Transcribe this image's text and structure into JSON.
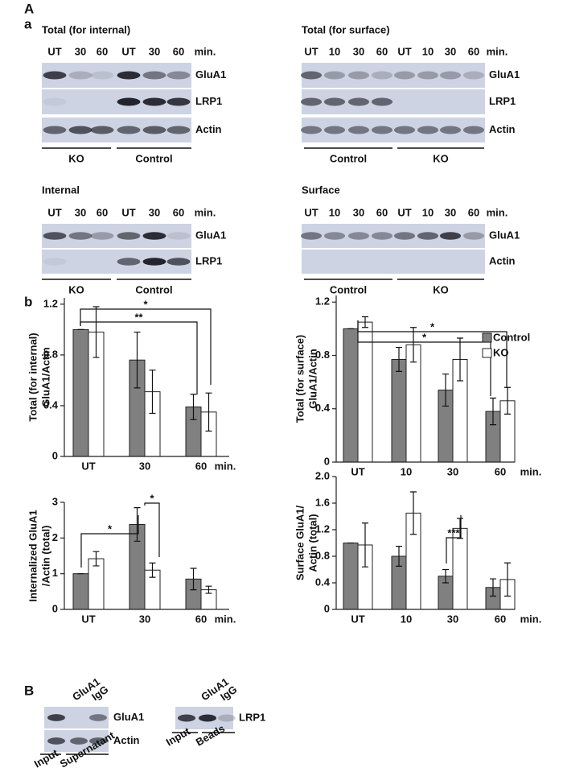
{
  "panel_labels": [
    "A",
    "a",
    "b",
    "B"
  ],
  "blots": [
    {
      "title": "Total (for internal)",
      "lanes": [
        "UT",
        "30",
        "60",
        "UT",
        "30",
        "60"
      ],
      "unit": "min.",
      "rows": [
        "GluA1",
        "LRP1",
        "Actin"
      ],
      "groups": [
        "KO",
        "Control"
      ]
    },
    {
      "title": "Total (for surface)",
      "lanes": [
        "UT",
        "10",
        "30",
        "60",
        "UT",
        "10",
        "30",
        "60"
      ],
      "unit": "min.",
      "rows": [
        "GluA1",
        "LRP1",
        "Actin"
      ],
      "groups": [
        "Control",
        "KO"
      ]
    },
    {
      "title": "Internal",
      "lanes": [
        "UT",
        "30",
        "60",
        "UT",
        "30",
        "60"
      ],
      "unit": "min.",
      "rows": [
        "GluA1",
        "LRP1"
      ],
      "groups": [
        "KO",
        "Control"
      ]
    },
    {
      "title": "Surface",
      "lanes": [
        "UT",
        "10",
        "30",
        "60",
        "UT",
        "10",
        "30",
        "60"
      ],
      "unit": "min.",
      "rows": [
        "GluA1",
        "Actin"
      ],
      "groups": [
        "Control",
        "KO"
      ]
    }
  ],
  "chart_data": [
    {
      "type": "bar",
      "y_label": [
        "Total (for internal)",
        "GluA1/Actin"
      ],
      "categories": [
        "UT",
        "30",
        "60"
      ],
      "x_unit": "min.",
      "series": [
        {
          "color": "#808080",
          "values": [
            1.0,
            0.76,
            0.39
          ],
          "errors": [
            0,
            0.22,
            0.1
          ]
        },
        {
          "color": "#ffffff",
          "values": [
            0.98,
            0.51,
            0.35
          ],
          "errors": [
            0.2,
            0.17,
            0.15
          ]
        }
      ],
      "ylim": [
        0,
        1.25
      ],
      "yticks": [
        0,
        0.4,
        0.8,
        1.2
      ],
      "annotations": [
        "*",
        "**"
      ]
    },
    {
      "type": "bar",
      "y_label": [
        "Total (for surface)",
        "GluA1/Actin"
      ],
      "categories": [
        "UT",
        "10",
        "30",
        "60"
      ],
      "x_unit": "min.",
      "series": [
        {
          "name": "Control",
          "color": "#808080",
          "values": [
            1.0,
            0.77,
            0.54,
            0.38
          ],
          "errors": [
            0,
            0.09,
            0.12,
            0.1
          ]
        },
        {
          "name": "KO",
          "color": "#ffffff",
          "values": [
            1.05,
            0.88,
            0.77,
            0.46
          ],
          "errors": [
            0.04,
            0.13,
            0.16,
            0.1
          ]
        }
      ],
      "ylim": [
        0,
        1.25
      ],
      "yticks": [
        0,
        0.4,
        0.8,
        1.2
      ],
      "annotations": [
        "*",
        "*"
      ],
      "legend": "right"
    },
    {
      "type": "bar",
      "y_label": [
        "Internalized GluA1",
        "/Actin (total)"
      ],
      "categories": [
        "UT",
        "30",
        "60"
      ],
      "x_unit": "min.",
      "series": [
        {
          "color": "#808080",
          "values": [
            1.0,
            2.38,
            0.85
          ],
          "errors": [
            0,
            0.47,
            0.3
          ]
        },
        {
          "color": "#ffffff",
          "values": [
            1.42,
            1.1,
            0.55
          ],
          "errors": [
            0.2,
            0.2,
            0.1
          ]
        }
      ],
      "ylim": [
        0,
        3
      ],
      "yticks": [
        0,
        1,
        2,
        3
      ],
      "annotations": [
        "*",
        "*"
      ]
    },
    {
      "type": "bar",
      "y_label": [
        "Surface GluA1/",
        "Actin (total)"
      ],
      "categories": [
        "UT",
        "10",
        "30",
        "60"
      ],
      "x_unit": "min.",
      "series": [
        {
          "color": "#808080",
          "values": [
            1.0,
            0.8,
            0.5,
            0.33
          ],
          "errors": [
            0,
            0.15,
            0.1,
            0.13
          ]
        },
        {
          "color": "#ffffff",
          "values": [
            0.97,
            1.45,
            1.22,
            0.45
          ],
          "errors": [
            0.33,
            0.32,
            0.15,
            0.25
          ]
        }
      ],
      "ylim": [
        0,
        2
      ],
      "yticks": [
        0,
        0.4,
        0.8,
        1.2,
        1.6,
        {
          "value": 2,
          "label": "2.0"
        }
      ],
      "annotations": [
        "***"
      ]
    }
  ],
  "pulldowns": [
    {
      "lanes": [
        "GluA1",
        "IgG"
      ],
      "rows": [
        "GluA1",
        "Actin"
      ],
      "groups": [
        "Input",
        "Supernatant"
      ]
    },
    {
      "lanes": [
        "GluA1",
        "IgG"
      ],
      "rows": [
        "LRP1"
      ],
      "groups": [
        "Input",
        "Beads"
      ]
    }
  ]
}
